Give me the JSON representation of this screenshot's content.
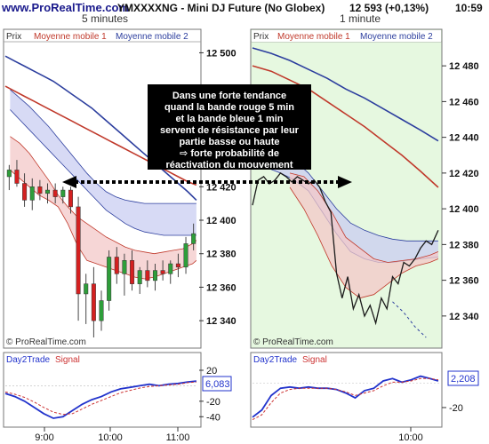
{
  "header": {
    "site": "www.ProRealTime.com",
    "symbol": "YMXXXXNG - Mini DJ Future (No Globex)",
    "price": "12 593 (+0,13%)",
    "clock": "10:59"
  },
  "left_chart": {
    "timeframe": "5 minutes",
    "panel_label": "Prix",
    "legend_ma1": "Moyenne mobile 1",
    "legend_ma2": "Moyenne mobile 2",
    "watermark": "© ProRealTime.com",
    "osc_label": "Day2Trade",
    "osc_signal_label": "Signal",
    "osc_value": "6,083"
  },
  "right_chart": {
    "timeframe": "1 minute",
    "panel_label": "Prix",
    "legend_ma1": "Moyenne mobile 1",
    "legend_ma2": "Moyenne mobile 2",
    "watermark": "© ProRealTime.com",
    "osc_label": "Day2Trade",
    "osc_signal_label": "Signal",
    "osc_value": "2,208"
  },
  "annotation": {
    "lines": [
      "Dans une forte tendance",
      "quand la bande rouge 5 min",
      "et la bande bleue 1 min",
      "servent de résistance par leur",
      "partie basse ou haute",
      "⇨ forte probabilité de",
      "réactivation du mouvement"
    ]
  },
  "colors": {
    "ma1": "#c0392b",
    "ma2": "#2c3e9e",
    "up_candle": "#2e9e3a",
    "down_candle": "#d42020",
    "red_band": "#f3c8c8",
    "blue_band": "#c9cdf2",
    "right_bg": "#e6f8e0",
    "signal": "#cc3333",
    "oscillator": "#2233cc"
  },
  "chart_data": [
    {
      "id": "left-price",
      "type": "line",
      "title": "5 minutes",
      "ylabel": "Prix",
      "y_ticks": [
        12340,
        12360,
        12380,
        12400,
        12420,
        12500
      ],
      "ylim": [
        12330,
        12505
      ],
      "grid": false,
      "series": [
        {
          "name": "Moyenne mobile 1",
          "color": "#c0392b",
          "x": [
            0,
            10,
            20,
            30,
            40,
            50,
            60,
            70,
            80,
            90,
            100,
            110,
            120,
            130,
            140,
            150,
            160,
            170,
            180,
            190,
            199
          ],
          "values": [
            12480,
            12477,
            12474,
            12471,
            12468,
            12465,
            12462,
            12459,
            12456,
            12453,
            12450,
            12447,
            12444,
            12441,
            12438,
            12435,
            12432,
            12429,
            12426,
            12423,
            12421
          ]
        },
        {
          "name": "Moyenne mobile 2",
          "color": "#2c3e9e",
          "x": [
            0,
            10,
            20,
            30,
            40,
            50,
            60,
            70,
            80,
            90,
            100,
            110,
            120,
            130,
            140,
            150,
            160,
            170,
            180,
            190,
            199
          ],
          "values": [
            12498,
            12495,
            12492,
            12489,
            12486,
            12483,
            12479,
            12475,
            12471,
            12467,
            12462,
            12457,
            12452,
            12447,
            12442,
            12437,
            12432,
            12427,
            12422,
            12417,
            12412
          ]
        }
      ],
      "bands": [
        {
          "name": "red",
          "color": "#f3c8c8",
          "x": [
            5,
            15,
            25,
            35,
            45,
            55,
            65,
            75,
            85,
            95,
            105,
            115,
            125,
            135,
            145,
            155,
            165,
            175,
            185,
            195,
            199
          ],
          "upper": [
            12450,
            12446,
            12440,
            12432,
            12424,
            12415,
            12408,
            12402,
            12398,
            12394,
            12390,
            12387,
            12384,
            12382,
            12381,
            12380,
            12381,
            12382,
            12383,
            12386,
            12388
          ],
          "lower": [
            12430,
            12425,
            12420,
            12415,
            12412,
            12408,
            12398,
            12385,
            12376,
            12374,
            12372,
            12370,
            12368,
            12366,
            12365,
            12366,
            12368,
            12370,
            12372,
            12374,
            12376
          ]
        },
        {
          "name": "blue",
          "color": "#c9cdf2",
          "x": [
            5,
            15,
            25,
            35,
            45,
            55,
            65,
            75,
            85,
            95,
            105,
            115,
            125,
            135,
            145,
            155,
            165,
            175,
            185,
            195,
            199
          ],
          "upper": [
            12478,
            12473,
            12468,
            12462,
            12456,
            12449,
            12442,
            12435,
            12428,
            12422,
            12417,
            12414,
            12412,
            12411,
            12410,
            12410,
            12410,
            12410,
            12410,
            12410,
            12410
          ],
          "lower": [
            12466,
            12460,
            12454,
            12448,
            12442,
            12436,
            12430,
            12424,
            12418,
            12412,
            12406,
            12402,
            12398,
            12395,
            12393,
            12392,
            12391,
            12391,
            12391,
            12391,
            12391
          ]
        }
      ],
      "candles": [
        {
          "x": 4,
          "o": 12426,
          "h": 12433,
          "l": 12418,
          "c": 12430
        },
        {
          "x": 12,
          "o": 12430,
          "h": 12436,
          "l": 12420,
          "c": 12422
        },
        {
          "x": 20,
          "o": 12422,
          "h": 12428,
          "l": 12408,
          "c": 12412
        },
        {
          "x": 28,
          "o": 12412,
          "h": 12425,
          "l": 12406,
          "c": 12420
        },
        {
          "x": 36,
          "o": 12420,
          "h": 12424,
          "l": 12412,
          "c": 12416
        },
        {
          "x": 44,
          "o": 12416,
          "h": 12422,
          "l": 12410,
          "c": 12418
        },
        {
          "x": 52,
          "o": 12418,
          "h": 12422,
          "l": 12410,
          "c": 12414
        },
        {
          "x": 60,
          "o": 12414,
          "h": 12420,
          "l": 12410,
          "c": 12418
        },
        {
          "x": 68,
          "o": 12418,
          "h": 12420,
          "l": 12404,
          "c": 12408
        },
        {
          "x": 76,
          "o": 12408,
          "h": 12414,
          "l": 12340,
          "c": 12356
        },
        {
          "x": 84,
          "o": 12356,
          "h": 12368,
          "l": 12338,
          "c": 12362
        },
        {
          "x": 92,
          "o": 12362,
          "h": 12372,
          "l": 12330,
          "c": 12340
        },
        {
          "x": 100,
          "o": 12340,
          "h": 12358,
          "l": 12334,
          "c": 12352
        },
        {
          "x": 108,
          "o": 12352,
          "h": 12382,
          "l": 12346,
          "c": 12378
        },
        {
          "x": 116,
          "o": 12378,
          "h": 12384,
          "l": 12362,
          "c": 12368
        },
        {
          "x": 124,
          "o": 12368,
          "h": 12380,
          "l": 12355,
          "c": 12376
        },
        {
          "x": 132,
          "o": 12376,
          "h": 12382,
          "l": 12358,
          "c": 12362
        },
        {
          "x": 140,
          "o": 12362,
          "h": 12372,
          "l": 12356,
          "c": 12370
        },
        {
          "x": 148,
          "o": 12370,
          "h": 12376,
          "l": 12360,
          "c": 12364
        },
        {
          "x": 156,
          "o": 12364,
          "h": 12374,
          "l": 12358,
          "c": 12370
        },
        {
          "x": 164,
          "o": 12370,
          "h": 12376,
          "l": 12364,
          "c": 12368
        },
        {
          "x": 172,
          "o": 12368,
          "h": 12376,
          "l": 12362,
          "c": 12374
        },
        {
          "x": 180,
          "o": 12374,
          "h": 12380,
          "l": 12366,
          "c": 12372
        },
        {
          "x": 188,
          "o": 12372,
          "h": 12390,
          "l": 12368,
          "c": 12386
        },
        {
          "x": 196,
          "o": 12386,
          "h": 12398,
          "l": 12382,
          "c": 12392
        }
      ]
    },
    {
      "id": "right-price",
      "type": "line",
      "title": "1 minute",
      "ylabel": "Prix",
      "y_ticks": [
        12340,
        12360,
        12380,
        12400,
        12420,
        12440,
        12460,
        12480
      ],
      "ylim": [
        12328,
        12492
      ],
      "grid": false,
      "series": [
        {
          "name": "Moyenne mobile 1",
          "color": "#c0392b",
          "x": [
            0,
            20,
            40,
            60,
            80,
            100,
            120,
            140,
            160,
            180,
            199
          ],
          "values": [
            12480,
            12477,
            12472,
            12467,
            12460,
            12453,
            12446,
            12438,
            12430,
            12421,
            12412
          ]
        },
        {
          "name": "Moyenne mobile 2",
          "color": "#2c3e9e",
          "x": [
            0,
            20,
            40,
            60,
            80,
            100,
            120,
            140,
            160,
            180,
            199
          ],
          "values": [
            12490,
            12487,
            12483,
            12478,
            12473,
            12467,
            12462,
            12456,
            12450,
            12444,
            12438
          ]
        }
      ],
      "bands": [
        {
          "name": "blue",
          "color": "#c9cdf2",
          "x": [
            0,
            15,
            30,
            45,
            60,
            75,
            90,
            105,
            120,
            135,
            150,
            165,
            180,
            199
          ],
          "upper": [
            12440,
            12436,
            12432,
            12427,
            12420,
            12410,
            12400,
            12392,
            12388,
            12385,
            12383,
            12382,
            12382,
            12382
          ],
          "lower": [
            12426,
            12423,
            12420,
            12416,
            12410,
            12398,
            12386,
            12376,
            12372,
            12370,
            12370,
            12371,
            12372,
            12373
          ]
        },
        {
          "name": "red",
          "color": "#f3c8c8",
          "x": [
            40,
            55,
            70,
            85,
            100,
            115,
            130,
            145,
            160,
            175,
            190,
            199
          ],
          "upper": [
            12420,
            12418,
            12410,
            12398,
            12384,
            12378,
            12372,
            12370,
            12371,
            12372,
            12374,
            12376
          ],
          "lower": [
            12412,
            12400,
            12385,
            12368,
            12356,
            12350,
            12352,
            12358,
            12364,
            12368,
            12370,
            12372
          ]
        }
      ],
      "price_line": {
        "x": [
          0,
          6,
          12,
          18,
          24,
          30,
          36,
          42,
          48,
          54,
          60,
          66,
          72,
          78,
          84,
          90,
          96,
          102,
          108,
          114,
          120,
          126,
          132,
          138,
          144,
          150,
          156,
          162,
          168,
          174,
          180,
          186,
          192,
          199
        ],
        "values": [
          12402,
          12416,
          12418,
          12414,
          12416,
          12420,
          12418,
          12415,
          12418,
          12416,
          12414,
          12416,
          12412,
          12404,
          12398,
          12364,
          12350,
          12362,
          12344,
          12352,
          12340,
          12346,
          12336,
          12350,
          12344,
          12362,
          12358,
          12370,
          12368,
          12372,
          12378,
          12382,
          12380,
          12388
        ]
      },
      "trail_line": {
        "x": [
          150,
          162,
          174,
          186
        ],
        "values": [
          12348,
          12342,
          12334,
          12328
        ]
      }
    },
    {
      "id": "left-oscillator",
      "type": "line",
      "title": "Day2Trade",
      "y_ticks": [
        20,
        -20,
        -40
      ],
      "ylim": [
        -50,
        28
      ],
      "current_value": 6.083,
      "series": [
        {
          "name": "Day2Trade",
          "color": "#2233cc",
          "x": [
            0,
            10,
            20,
            30,
            40,
            50,
            60,
            70,
            80,
            90,
            100,
            110,
            120,
            130,
            140,
            150,
            160,
            170,
            180,
            190,
            199
          ],
          "values": [
            -10,
            -14,
            -20,
            -28,
            -36,
            -42,
            -40,
            -32,
            -24,
            -18,
            -14,
            -8,
            -4,
            -2,
            0,
            2,
            0,
            2,
            3,
            5,
            6
          ]
        },
        {
          "name": "Signal",
          "color": "#cc3333",
          "x": [
            0,
            10,
            20,
            30,
            40,
            50,
            60,
            70,
            80,
            90,
            100,
            110,
            120,
            130,
            140,
            150,
            160,
            170,
            180,
            190,
            199
          ],
          "values": [
            -8,
            -11,
            -15,
            -21,
            -28,
            -34,
            -37,
            -36,
            -30,
            -24,
            -19,
            -14,
            -9,
            -6,
            -3,
            -1,
            0,
            1,
            2,
            4,
            5
          ]
        }
      ]
    },
    {
      "id": "right-oscillator",
      "type": "line",
      "title": "Day2Trade",
      "y_ticks": [
        -20
      ],
      "ylim": [
        -34,
        16
      ],
      "current_value": 2.208,
      "series": [
        {
          "name": "Day2Trade",
          "color": "#2233cc",
          "x": [
            0,
            10,
            20,
            30,
            40,
            50,
            60,
            70,
            80,
            90,
            100,
            110,
            120,
            130,
            140,
            150,
            160,
            170,
            180,
            190,
            199
          ],
          "values": [
            -28,
            -22,
            -10,
            -4,
            -3,
            -4,
            -3,
            -4,
            -4,
            -5,
            -8,
            -12,
            -6,
            -4,
            2,
            4,
            1,
            3,
            6,
            4,
            2
          ]
        },
        {
          "name": "Signal",
          "color": "#cc3333",
          "x": [
            0,
            10,
            20,
            30,
            40,
            50,
            60,
            70,
            80,
            90,
            100,
            110,
            120,
            130,
            140,
            150,
            160,
            170,
            180,
            190,
            199
          ],
          "values": [
            -30,
            -26,
            -16,
            -8,
            -5,
            -4,
            -4,
            -4,
            -4,
            -5,
            -7,
            -10,
            -8,
            -6,
            -2,
            1,
            1,
            2,
            4,
            4,
            3
          ]
        }
      ]
    }
  ],
  "x_axis": {
    "left_ticks": [
      "9:00",
      "10:00",
      "11:00"
    ],
    "right_ticks": [
      "10:00"
    ]
  }
}
